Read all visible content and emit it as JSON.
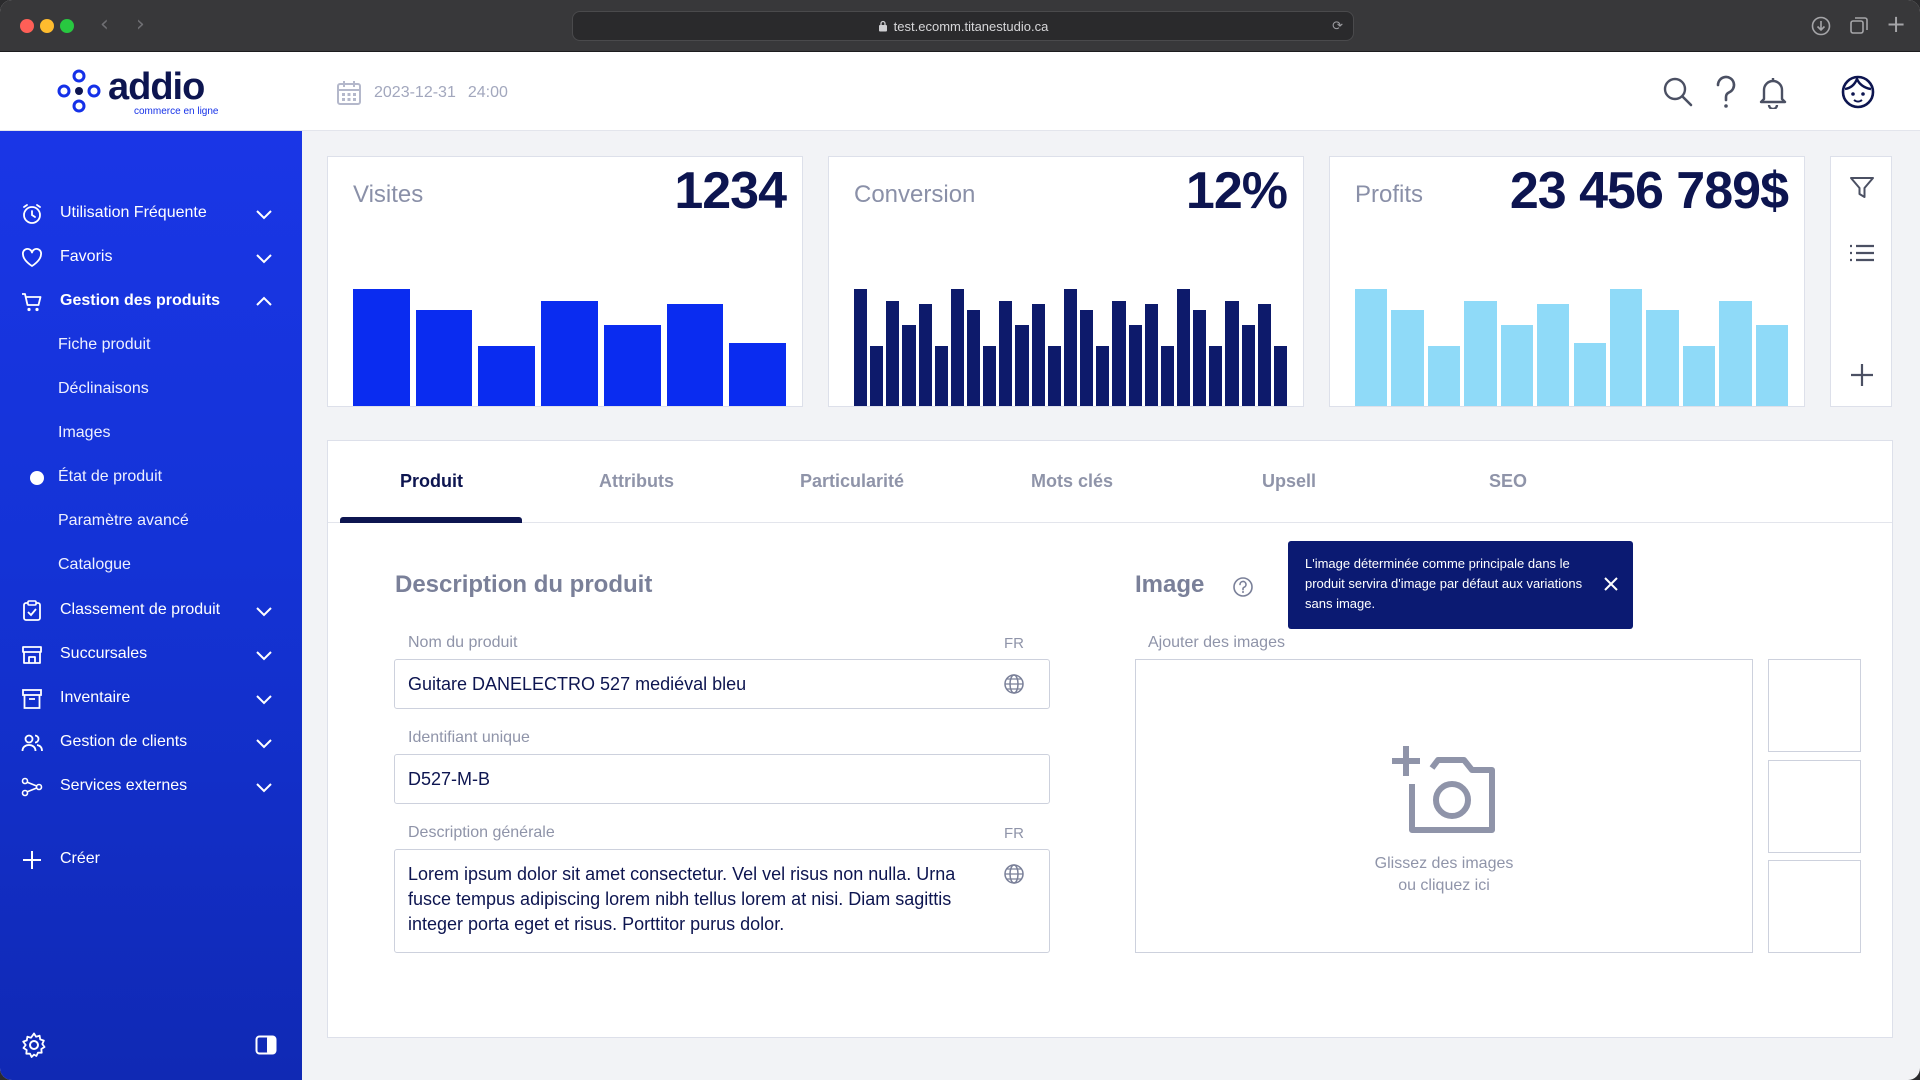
{
  "browser": {
    "url": "test.ecomm.titanestudio.ca"
  },
  "header": {
    "logo_text": "addio",
    "logo_sub": "commerce en ligne",
    "date": "2023-12-31",
    "time": "24:00",
    "icons": [
      "search-icon",
      "help-icon",
      "bell-icon",
      "user-avatar-icon"
    ]
  },
  "sidebar": {
    "items": [
      {
        "label": "Utilisation Fréquente",
        "icon": "clock-icon",
        "expanded": false
      },
      {
        "label": "Favoris",
        "icon": "heart-icon",
        "expanded": false
      },
      {
        "label": "Gestion des produits",
        "icon": "cart-icon",
        "expanded": true
      },
      {
        "label": "Classement de produit",
        "icon": "clipboard-icon",
        "expanded": false
      },
      {
        "label": "Succursales",
        "icon": "store-icon",
        "expanded": false
      },
      {
        "label": "Inventaire",
        "icon": "archive-icon",
        "expanded": false
      },
      {
        "label": "Gestion de clients",
        "icon": "users-icon",
        "expanded": false
      },
      {
        "label": "Services externes",
        "icon": "share-icon",
        "expanded": false
      }
    ],
    "subitems": [
      "Fiche produit",
      "Déclinaisons",
      "Images",
      "État de produit",
      "Paramètre avancé",
      "Catalogue"
    ],
    "active_subitem": "État de produit",
    "create_label": "Créer"
  },
  "stats": [
    {
      "label": "Visites",
      "value": "1234",
      "color": "#0a2cf0",
      "bars": [
        0.78,
        0.64,
        0.4,
        0.7,
        0.54,
        0.68,
        0.42
      ]
    },
    {
      "label": "Conversion",
      "value": "12%",
      "color": "#0d1a6b",
      "bars": [
        0.78,
        0.4,
        0.7,
        0.54,
        0.68,
        0.4,
        0.78,
        0.64,
        0.4,
        0.7,
        0.54,
        0.68,
        0.4,
        0.78,
        0.64,
        0.4,
        0.7,
        0.54,
        0.68,
        0.4,
        0.78,
        0.64,
        0.4,
        0.7,
        0.54,
        0.68,
        0.4
      ]
    },
    {
      "label": "Profits",
      "value": "23 456 789$",
      "color": "#8fdaf8",
      "bars": [
        0.78,
        0.64,
        0.4,
        0.7,
        0.54,
        0.68,
        0.42,
        0.78,
        0.64,
        0.4,
        0.7,
        0.54
      ]
    }
  ],
  "tabs": [
    "Produit",
    "Attributs",
    "Particularité",
    "Mots clés",
    "Upsell",
    "SEO"
  ],
  "active_tab": "Produit",
  "description": {
    "title": "Description du produit",
    "name_label": "Nom du produit",
    "name_lang": "FR",
    "name_value": "Guitare DANELECTRO 527 mediéval bleu",
    "id_label": "Identifiant unique",
    "id_value": "D527-M-B",
    "desc_label": "Description générale",
    "desc_lang": "FR",
    "desc_value": "Lorem ipsum dolor sit amet consectetur. Vel vel risus non nulla. Urna fusce tempus adipiscing lorem nibh tellus lorem at nisi. Diam sagittis integer porta eget et risus. Porttitor purus dolor."
  },
  "image": {
    "title": "Image",
    "add_label": "Ajouter des images",
    "drop_line1": "Glissez des images",
    "drop_line2": "ou cliquez ici",
    "tooltip": "L'image déterminée comme principale dans le produit servira d'image par défaut aux variations sans image."
  }
}
